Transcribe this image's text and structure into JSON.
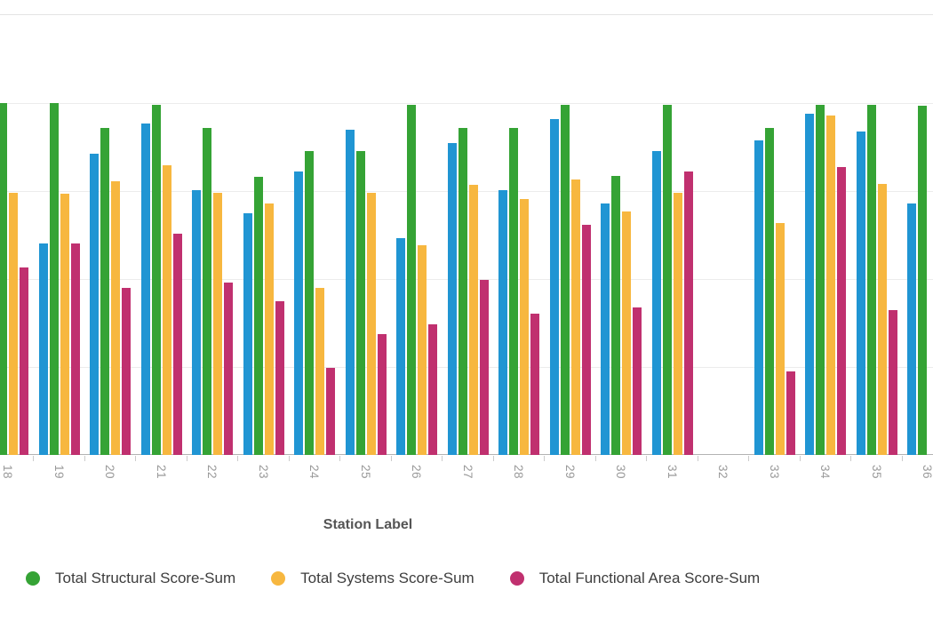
{
  "chart_data": {
    "type": "bar",
    "title": "",
    "xlabel": "Station Label",
    "ylabel": "",
    "ylim": [
      0,
      500
    ],
    "gridline_step": 100,
    "grid": true,
    "legend_position": "bottom",
    "categories": [
      "18",
      "19",
      "20",
      "21",
      "22",
      "23",
      "24",
      "25",
      "26",
      "27",
      "28",
      "29",
      "30",
      "31",
      "32",
      "33",
      "34",
      "35",
      "36"
    ],
    "series": [
      {
        "name": "",
        "legend_visible": false,
        "color": "#2095d3",
        "values": [
          null,
          240,
          342,
          377,
          301,
          275,
          322,
          370,
          246,
          355,
          301,
          382,
          286,
          345,
          null,
          358,
          388,
          368,
          286
        ]
      },
      {
        "name": "Total Structural Score-Sum",
        "legend_visible": true,
        "color": "#35a335",
        "values": [
          400,
          400,
          372,
          398,
          372,
          316,
          345,
          345,
          398,
          372,
          372,
          398,
          317,
          398,
          null,
          372,
          398,
          398,
          397
        ]
      },
      {
        "name": "Total Systems Score-Sum",
        "legend_visible": true,
        "color": "#f7b73f",
        "values": [
          298,
          297,
          311,
          329,
          298,
          286,
          190,
          298,
          238,
          307,
          291,
          313,
          277,
          298,
          null,
          264,
          386,
          308,
          null
        ]
      },
      {
        "name": "Total Functional Area Score-Sum",
        "legend_visible": true,
        "color": "#c0306f",
        "values": [
          213,
          240,
          190,
          252,
          196,
          175,
          99,
          137,
          148,
          199,
          161,
          262,
          168,
          322,
          null,
          95,
          327,
          165,
          null
        ]
      }
    ],
    "legend": [
      "Total Structural Score-Sum",
      "Total Systems Score-Sum",
      "Total Functional Area Score-Sum"
    ],
    "notes": "x-axis category 32 has no bars; left edge of chart (y-axis and first blue bar) and right edge (end of group 36) are cropped out of view"
  },
  "axis_colors": {
    "gridline": "#ececec",
    "axis_line": "#b3b3b3",
    "tick": "#cccccc",
    "tick_label": "#9a9a9a",
    "axis_title": "#555555",
    "legend_text": "#3d3d3d"
  }
}
